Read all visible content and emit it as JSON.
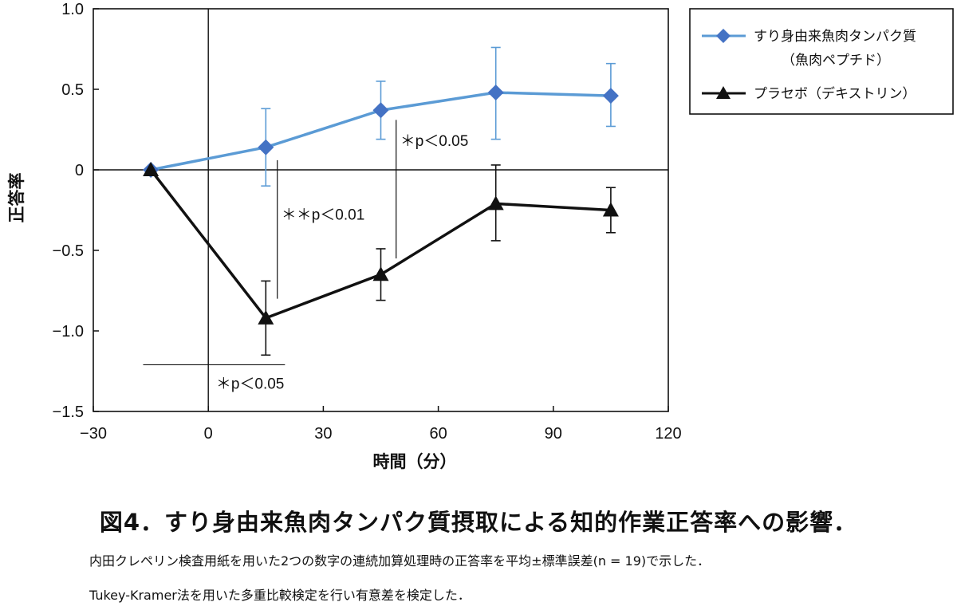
{
  "colors": {
    "fish_peptide": "#5b9bd5",
    "fish_peptide_marker": "#4472c4",
    "placebo": "#111111",
    "axis": "#111111"
  },
  "chart_data": {
    "type": "line",
    "xlabel": "時間（分）",
    "ylabel": "正答率",
    "xlim": [
      -30,
      120
    ],
    "ylim": [
      -1.5,
      1.0
    ],
    "x_ticks": [
      -30,
      0,
      30,
      60,
      90,
      120
    ],
    "x_tick_labels": [
      "−30",
      "0",
      "30",
      "60",
      "90",
      "120"
    ],
    "y_ticks": [
      1.0,
      0.5,
      0,
      -0.5,
      -1.0,
      -1.5
    ],
    "y_tick_labels": [
      "1.0",
      "0.5",
      "0",
      "−0.5",
      "−1.0",
      "−1.5"
    ],
    "grid": false,
    "legend_placement": "top-right, outside plot",
    "x": [
      -15,
      15,
      45,
      75,
      105
    ],
    "series": [
      {
        "name": "すり身由来魚肉タンパク質",
        "name_line2": "（魚肉ペプチド）",
        "marker": "diamond",
        "color": "#5b9bd5",
        "values": [
          0,
          0.14,
          0.37,
          0.48,
          0.46
        ],
        "error_upper": [
          0,
          0.38,
          0.55,
          0.76,
          0.66
        ],
        "error_lower": [
          0,
          -0.1,
          0.19,
          0.19,
          0.27
        ]
      },
      {
        "name": "プラセボ（デキストリン）",
        "marker": "triangle",
        "color": "#111111",
        "values": [
          0,
          -0.92,
          -0.65,
          -0.21,
          -0.25
        ],
        "error_upper": [
          0,
          -0.69,
          -0.49,
          0.03,
          -0.11
        ],
        "error_lower": [
          0,
          -1.15,
          -0.81,
          -0.44,
          -0.39
        ]
      }
    ],
    "reference_lines": {
      "x": 0,
      "y": 0
    },
    "annotations": [
      {
        "text": "＊p＜0.05",
        "bracket": "horizontal",
        "x_from": -17,
        "x_to": 20,
        "y": -1.21
      },
      {
        "text": "＊＊p＜0.01",
        "bracket": "vertical",
        "x": 18,
        "y_from": 0.06,
        "y_to": -0.8
      },
      {
        "text": "＊p＜0.05",
        "bracket": "vertical",
        "x": 49,
        "y_from": 0.31,
        "y_to": -0.55
      }
    ]
  },
  "caption": {
    "title": "図4．すり身由来魚肉タンパク質摂取による知的作業正答率への影響．",
    "line1": "内田クレペリン検査用紙を用いた2つの数字の連続加算処理時の正答率を平均±標準誤差(n = 19)で示した．",
    "line2": "Tukey-Kramer法を用いた多重比較検定を行い有意差を検定した．"
  }
}
